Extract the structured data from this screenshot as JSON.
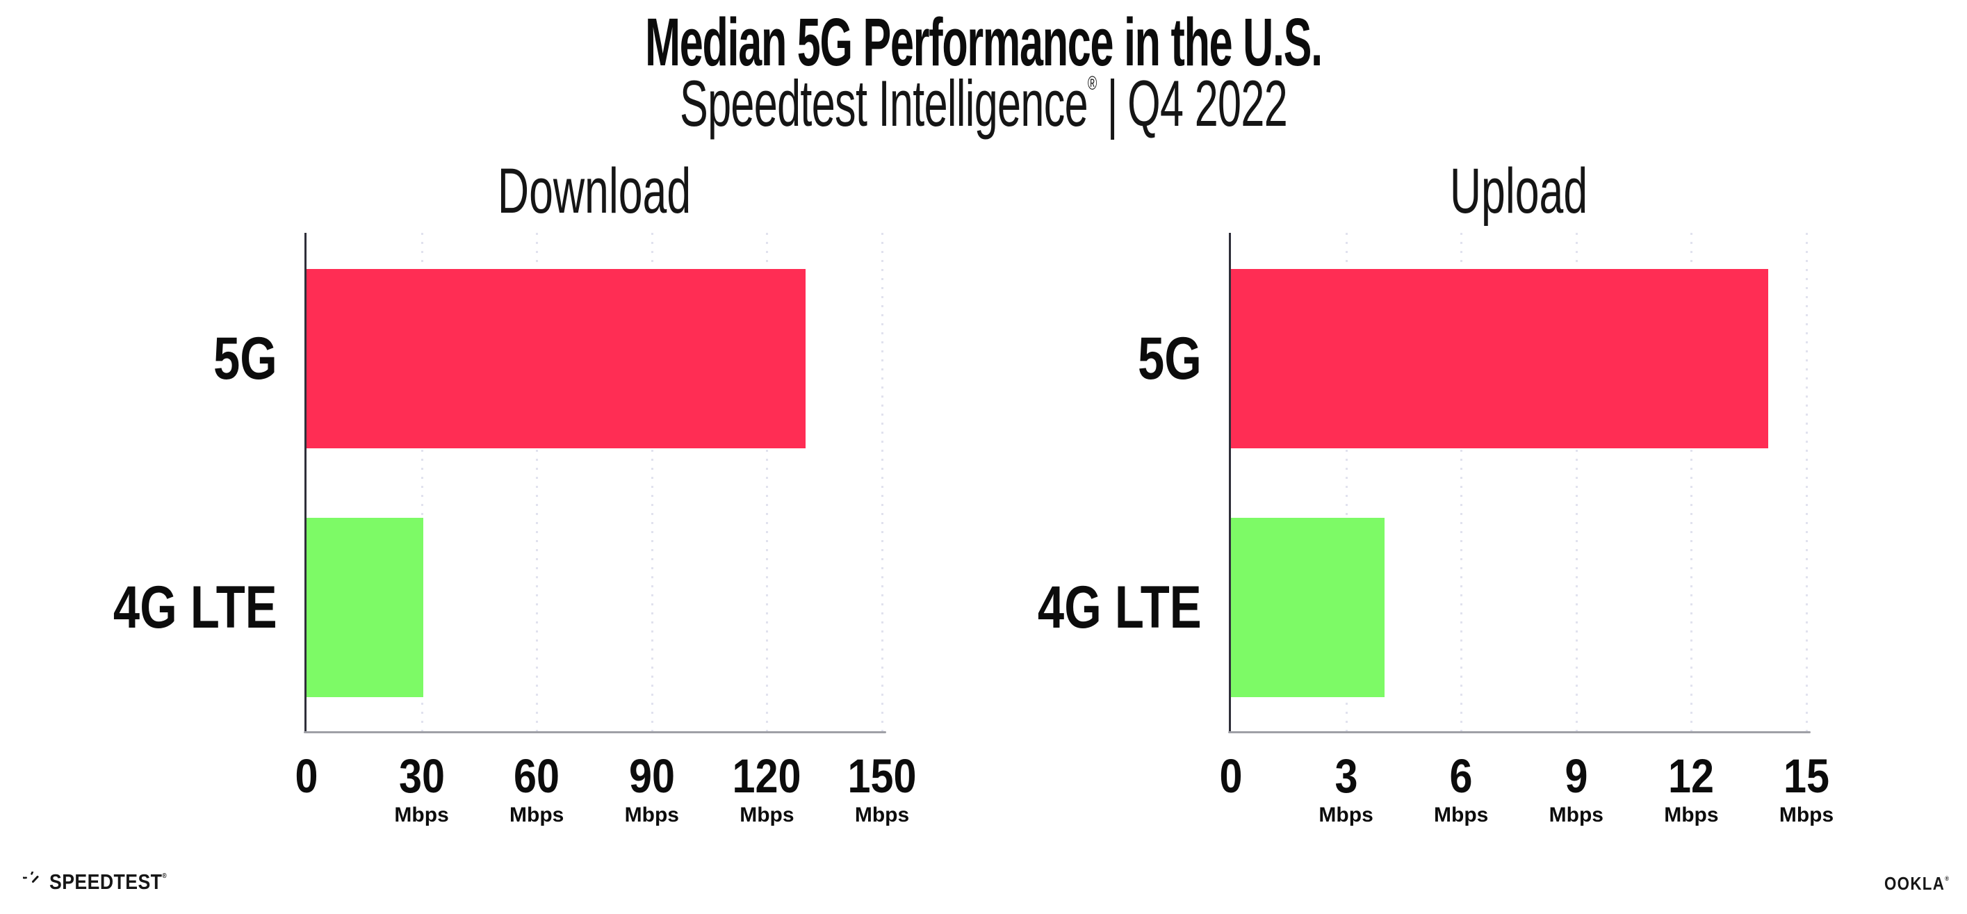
{
  "header": {
    "title": "Median 5G Performance in the U.S.",
    "subtitle": {
      "brand": "Speedtest Intelligence",
      "registered_mark": "®",
      "separator": "|",
      "period": "Q4 2022"
    }
  },
  "chart_data": [
    {
      "type": "bar",
      "orientation": "horizontal",
      "title": "Download",
      "categories": [
        "5G",
        "4G LTE"
      ],
      "values": [
        130,
        30.4
      ],
      "unit": "Mbps",
      "xlim": [
        0,
        150
      ],
      "xticks": [
        0,
        30,
        60,
        90,
        120,
        150
      ],
      "xtick_unit": "Mbps",
      "grid": "vertical-dotted",
      "bar_colors": [
        "#ff2d54",
        "#7dfa66"
      ]
    },
    {
      "type": "bar",
      "orientation": "horizontal",
      "title": "Upload",
      "categories": [
        "5G",
        "4G LTE"
      ],
      "values": [
        14,
        4
      ],
      "unit": "Mbps",
      "xlim": [
        0,
        15
      ],
      "xticks": [
        0,
        3,
        6,
        9,
        12,
        15
      ],
      "xtick_unit": "Mbps",
      "grid": "vertical-dotted",
      "bar_colors": [
        "#ff2d54",
        "#7dfa66"
      ]
    }
  ],
  "footer": {
    "speedtest": {
      "icon": "speedtest-gauge-icon",
      "text": "SPEEDTEST",
      "mark": "®"
    },
    "ookla": {
      "text": "OOKLA",
      "mark": "®"
    }
  },
  "colors": {
    "bar_5g": "#ff2d54",
    "bar_4g_lte": "#7dfa66",
    "gridline": "#e1e2ee",
    "axis_line": "#9fa0a6",
    "axis_spine": "#2f2f3a",
    "text": "#111111",
    "background": "#ffffff"
  }
}
